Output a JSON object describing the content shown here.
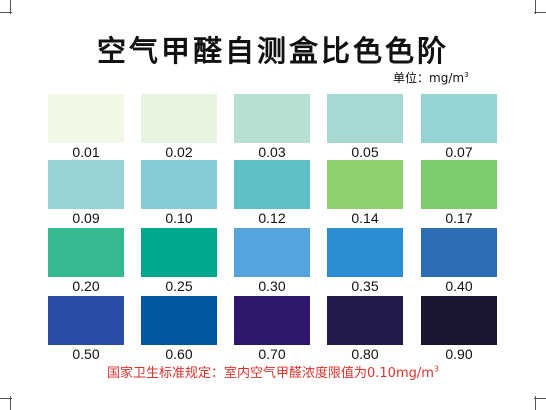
{
  "title": "空气甲醛自测盒比色色阶",
  "unit": {
    "label": "单位：",
    "value": "mg/m",
    "sup": "3"
  },
  "swatches": [
    {
      "value": "0.01",
      "color": "#f1f8e6"
    },
    {
      "value": "0.02",
      "color": "#e8f4e0"
    },
    {
      "value": "0.03",
      "color": "#b6e1d2"
    },
    {
      "value": "0.05",
      "color": "#a6d9d3"
    },
    {
      "value": "0.07",
      "color": "#96d3d3"
    },
    {
      "value": "0.09",
      "color": "#99d3d6"
    },
    {
      "value": "0.10",
      "color": "#84cdd4"
    },
    {
      "value": "0.12",
      "color": "#5ec0c6"
    },
    {
      "value": "0.14",
      "color": "#8dd06d"
    },
    {
      "value": "0.17",
      "color": "#7ecb6b"
    },
    {
      "value": "0.20",
      "color": "#36b891"
    },
    {
      "value": "0.25",
      "color": "#00a88e"
    },
    {
      "value": "0.30",
      "color": "#55a4dd"
    },
    {
      "value": "0.35",
      "color": "#2b8dd4"
    },
    {
      "value": "0.40",
      "color": "#2d6db6"
    },
    {
      "value": "0.50",
      "color": "#284fa5"
    },
    {
      "value": "0.60",
      "color": "#0256a2"
    },
    {
      "value": "0.70",
      "color": "#2e176c"
    },
    {
      "value": "0.80",
      "color": "#251a4d"
    },
    {
      "value": "0.90",
      "color": "#1c1532"
    }
  ],
  "note": {
    "text": "国家卫生标准规定：室内空气甲醛浓度限值为0.10mg/m",
    "sup": "3"
  }
}
